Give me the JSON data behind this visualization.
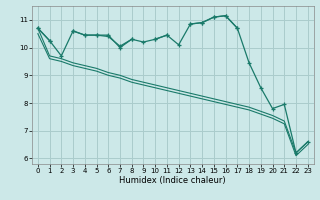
{
  "xlabel": "Humidex (Indice chaleur)",
  "bg_color": "#cce8e8",
  "grid_color": "#aacccc",
  "line_color": "#1a7a6a",
  "x_values": [
    0,
    1,
    2,
    3,
    4,
    5,
    6,
    7,
    8,
    9,
    10,
    11,
    12,
    13,
    14,
    15,
    16,
    17,
    18,
    19,
    20,
    21,
    22,
    23
  ],
  "series_main": [
    10.7,
    10.25,
    9.7,
    10.6,
    10.45,
    10.45,
    10.4,
    10.05,
    10.3,
    10.2,
    10.3,
    10.45,
    10.1,
    10.85,
    10.9,
    11.1,
    11.15,
    10.7,
    9.45,
    8.55,
    7.8,
    7.95,
    6.2,
    6.6
  ],
  "series_upper": [
    10.7,
    10.25,
    null,
    10.6,
    10.45,
    10.45,
    10.45,
    10.0,
    10.3,
    null,
    10.3,
    10.45,
    null,
    10.85,
    10.9,
    11.1,
    11.15,
    10.7,
    null,
    null,
    null,
    null,
    null,
    null
  ],
  "series_diag1": [
    10.7,
    9.7,
    9.6,
    9.45,
    9.35,
    9.25,
    9.1,
    9.0,
    8.85,
    8.75,
    8.65,
    8.55,
    8.45,
    8.35,
    8.25,
    8.15,
    8.05,
    7.95,
    7.85,
    7.7,
    7.55,
    7.35,
    6.2,
    6.6
  ],
  "series_diag2": [
    10.5,
    9.6,
    9.5,
    9.35,
    9.25,
    9.15,
    9.0,
    8.9,
    8.75,
    8.65,
    8.55,
    8.45,
    8.35,
    8.25,
    8.15,
    8.05,
    7.95,
    7.85,
    7.75,
    7.6,
    7.45,
    7.25,
    6.1,
    6.5
  ],
  "ylim": [
    5.8,
    11.5
  ],
  "xlim": [
    -0.5,
    23.5
  ],
  "yticks": [
    6,
    7,
    8,
    9,
    10,
    11
  ],
  "xticks": [
    0,
    1,
    2,
    3,
    4,
    5,
    6,
    7,
    8,
    9,
    10,
    11,
    12,
    13,
    14,
    15,
    16,
    17,
    18,
    19,
    20,
    21,
    22,
    23
  ]
}
